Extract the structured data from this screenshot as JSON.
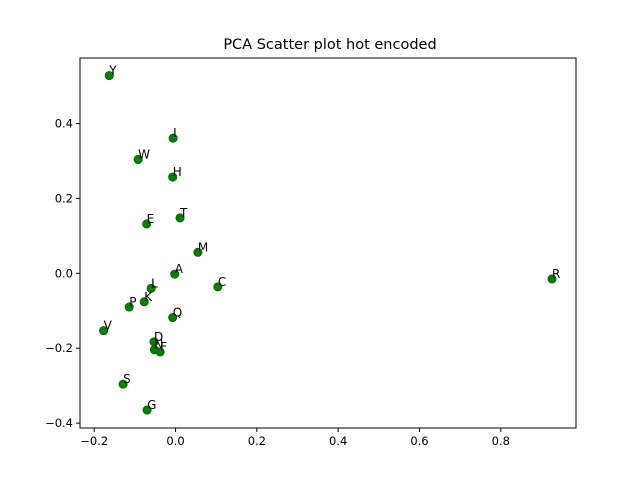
{
  "chart_data": {
    "type": "scatter",
    "title": "PCA Scatter plot hot encoded",
    "xlabel": "",
    "ylabel": "",
    "xlim": [
      -0.235,
      0.985
    ],
    "ylim": [
      -0.413,
      0.575
    ],
    "x_ticks": [
      -0.2,
      0.0,
      0.2,
      0.4,
      0.6,
      0.8
    ],
    "x_tick_labels": [
      "−0.2",
      "0.0",
      "0.2",
      "0.4",
      "0.6",
      "0.8"
    ],
    "y_ticks": [
      -0.4,
      -0.2,
      0.0,
      0.2,
      0.4
    ],
    "y_tick_labels": [
      "−0.4",
      "−0.2",
      "0.0",
      "0.2",
      "0.4"
    ],
    "grid": false,
    "marker_color": "#008000",
    "points": [
      {
        "label": "Y",
        "x": -0.163,
        "y": 0.528
      },
      {
        "label": "I",
        "x": -0.006,
        "y": 0.361
      },
      {
        "label": "W",
        "x": -0.092,
        "y": 0.304
      },
      {
        "label": "H",
        "x": -0.007,
        "y": 0.257
      },
      {
        "label": "T",
        "x": 0.011,
        "y": 0.148
      },
      {
        "label": "E",
        "x": -0.071,
        "y": 0.132
      },
      {
        "label": "M",
        "x": 0.055,
        "y": 0.056
      },
      {
        "label": "A",
        "x": -0.002,
        "y": -0.002
      },
      {
        "label": "R",
        "x": 0.926,
        "y": -0.015
      },
      {
        "label": "C",
        "x": 0.104,
        "y": -0.036
      },
      {
        "label": "L",
        "x": -0.06,
        "y": -0.04
      },
      {
        "label": "K",
        "x": -0.077,
        "y": -0.076
      },
      {
        "label": "P",
        "x": -0.114,
        "y": -0.09
      },
      {
        "label": "Q",
        "x": -0.007,
        "y": -0.118
      },
      {
        "label": "V",
        "x": -0.177,
        "y": -0.153
      },
      {
        "label": "D",
        "x": -0.053,
        "y": -0.183
      },
      {
        "label": "N",
        "x": -0.052,
        "y": -0.204
      },
      {
        "label": "F",
        "x": -0.038,
        "y": -0.21
      },
      {
        "label": "S",
        "x": -0.129,
        "y": -0.296
      },
      {
        "label": "G",
        "x": -0.07,
        "y": -0.365
      }
    ]
  }
}
